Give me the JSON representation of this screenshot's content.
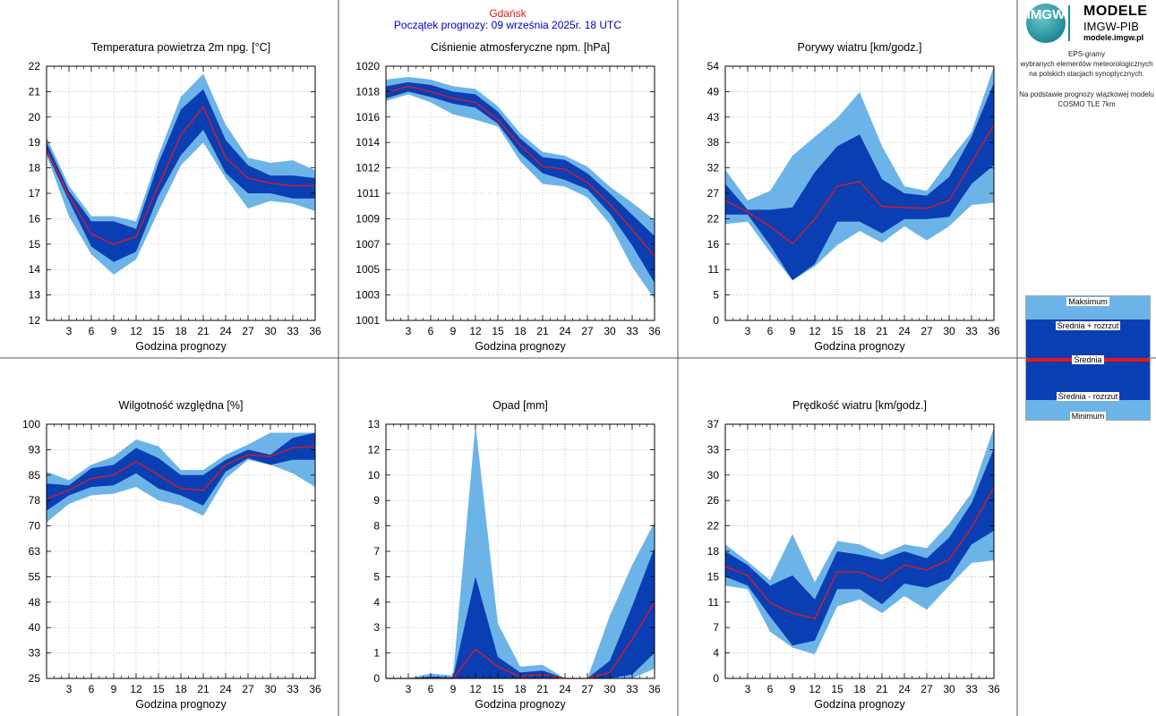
{
  "header": {
    "station": "Gdańsk",
    "forecast_start": "Początek prognozy: 09 września 2025r. 18 UTC"
  },
  "logo": {
    "mark": "IMGW",
    "title": "MODELE",
    "subtitle": "IMGW-PIB",
    "url": "modele.imgw.pl"
  },
  "description": {
    "lines_top": [
      "EPS-gramy",
      "wybranych elementów meteorologicznych",
      "na polskich stacjach  synoptycznych."
    ],
    "lines_bottom": [
      "Na podstawie prognozy wiązkowej modelu",
      "COSMO TLE 7km"
    ]
  },
  "legend": {
    "labels": [
      "Maksimum",
      "Średnia + rozrzut",
      "Średnia",
      "Średnia - rozrzut",
      "Minimum"
    ]
  },
  "colors": {
    "outer_band": "#6cb4e8",
    "inner_band": "#0a3fb4",
    "mean_line": "#e8161b",
    "header_station": "#e8161b",
    "header_start": "#0000c8"
  },
  "chart_data": [
    {
      "type": "area",
      "title": "Temperatura powietrza 2m npg. [°C]",
      "xlabel": "Godzina prognozy",
      "x": [
        0,
        3,
        6,
        9,
        12,
        15,
        18,
        21,
        24,
        27,
        30,
        33,
        36
      ],
      "xticks": [
        3,
        6,
        9,
        12,
        15,
        18,
        21,
        24,
        27,
        30,
        33,
        36
      ],
      "ylim": [
        12,
        22
      ],
      "yticks": [
        "12",
        "13",
        "14",
        "15",
        "16",
        "17",
        "18",
        "19",
        "20",
        "21",
        "22"
      ],
      "series": {
        "max": [
          19.2,
          17.3,
          16.1,
          16.1,
          15.9,
          18.5,
          20.8,
          21.7,
          19.7,
          18.4,
          18.2,
          18.3,
          17.9
        ],
        "mean_plus": [
          19.0,
          17.1,
          15.9,
          15.9,
          15.6,
          18.2,
          20.3,
          21.1,
          19.1,
          18.1,
          17.7,
          17.7,
          17.6
        ],
        "mean": [
          18.7,
          16.9,
          15.4,
          15.0,
          15.3,
          17.3,
          19.3,
          20.4,
          18.4,
          17.6,
          17.4,
          17.3,
          17.3
        ],
        "mean_minus": [
          18.6,
          16.7,
          14.9,
          14.3,
          14.7,
          16.9,
          18.5,
          19.5,
          17.8,
          17.0,
          17.0,
          16.8,
          16.8
        ],
        "min": [
          18.5,
          16.1,
          14.6,
          13.8,
          14.4,
          16.3,
          18.1,
          19.0,
          17.6,
          16.4,
          16.7,
          16.6,
          16.3
        ]
      }
    },
    {
      "type": "area",
      "title": "Ciśnienie atmosferyczne npm. [hPa]",
      "xlabel": "Godzina prognozy",
      "x": [
        0,
        3,
        6,
        9,
        12,
        15,
        18,
        21,
        24,
        27,
        30,
        33,
        36
      ],
      "xticks": [
        3,
        6,
        9,
        12,
        15,
        18,
        21,
        24,
        27,
        30,
        33,
        36
      ],
      "ylim": [
        1001,
        1020
      ],
      "yticks": [
        "1001",
        "1003",
        "1005",
        "1007",
        "1009",
        "1011",
        "1012",
        "1014",
        "1016",
        "1018",
        "1020"
      ],
      "series": {
        "max": [
          1019.0,
          1019.2,
          1019.0,
          1018.5,
          1018.3,
          1017.0,
          1015.0,
          1013.6,
          1013.3,
          1012.5,
          1011.0,
          1009.8,
          1008.5
        ],
        "mean_plus": [
          1018.5,
          1018.8,
          1018.6,
          1018.1,
          1017.9,
          1016.6,
          1014.6,
          1013.2,
          1013.0,
          1012.0,
          1010.5,
          1008.9,
          1007.3
        ],
        "mean": [
          1018.0,
          1018.5,
          1018.1,
          1017.6,
          1017.3,
          1016.0,
          1014.1,
          1012.5,
          1012.3,
          1011.3,
          1009.7,
          1007.8,
          1005.8
        ],
        "mean_minus": [
          1017.6,
          1018.1,
          1017.7,
          1017.2,
          1016.9,
          1015.7,
          1013.5,
          1012.0,
          1011.5,
          1010.8,
          1009.0,
          1006.6,
          1003.8
        ],
        "min": [
          1017.4,
          1017.9,
          1017.3,
          1016.4,
          1016.0,
          1015.5,
          1012.9,
          1011.2,
          1011.0,
          1010.2,
          1008.2,
          1005.0,
          1002.6
        ]
      }
    },
    {
      "type": "area",
      "title": "Porywy wiatru [km/godz.]",
      "xlabel": "Godzina prognozy",
      "x": [
        0,
        3,
        6,
        9,
        12,
        15,
        18,
        21,
        24,
        27,
        30,
        33,
        36
      ],
      "xticks": [
        3,
        6,
        9,
        12,
        15,
        18,
        21,
        24,
        27,
        30,
        33,
        36
      ],
      "ylim": [
        0,
        54
      ],
      "yticks": [
        "0",
        "5",
        "11",
        "16",
        "22",
        "27",
        "32",
        "38",
        "43",
        "49",
        "54"
      ],
      "series": {
        "max": [
          32.0,
          25.5,
          27.5,
          35.0,
          39.0,
          43.0,
          48.5,
          37.0,
          28.5,
          27.5,
          34.0,
          40.0,
          54.0
        ],
        "mean_plus": [
          29.0,
          23.5,
          23.5,
          24.0,
          31.5,
          37.0,
          39.5,
          30.0,
          27.0,
          26.5,
          30.5,
          39.0,
          50.5
        ],
        "mean": [
          25.5,
          23.0,
          20.0,
          16.3,
          21.5,
          28.5,
          29.5,
          24.2,
          24.0,
          23.8,
          25.5,
          33.5,
          41.5
        ],
        "mean_minus": [
          22.5,
          22.5,
          16.0,
          8.5,
          12.0,
          21.0,
          21.0,
          18.5,
          21.5,
          21.5,
          22.0,
          29.0,
          33.0
        ],
        "min": [
          20.5,
          21.0,
          14.5,
          8.5,
          11.5,
          16.0,
          19.0,
          16.5,
          20.0,
          17.0,
          20.0,
          24.5,
          25.0
        ]
      }
    },
    {
      "type": "area",
      "title": "Wilgotność względna [%]",
      "xlabel": "Godzina prognozy",
      "x": [
        0,
        3,
        6,
        9,
        12,
        15,
        18,
        21,
        24,
        27,
        30,
        33,
        36
      ],
      "xticks": [
        3,
        6,
        9,
        12,
        15,
        18,
        21,
        24,
        27,
        30,
        33,
        36
      ],
      "ylim": [
        25,
        100
      ],
      "yticks": [
        "25",
        "33",
        "40",
        "48",
        "55",
        "63",
        "70",
        "78",
        "85",
        "93",
        "100"
      ],
      "series": {
        "max": [
          86.0,
          83.5,
          88.0,
          90.5,
          95.5,
          93.5,
          86.5,
          86.5,
          91.0,
          94.0,
          97.5,
          97.5,
          97.5
        ],
        "mean_plus": [
          82.5,
          82.0,
          87.0,
          88.0,
          93.0,
          90.0,
          85.0,
          85.0,
          89.5,
          92.5,
          91.0,
          96.0,
          97.5
        ],
        "mean": [
          78.0,
          80.5,
          84.0,
          85.0,
          89.0,
          85.0,
          81.0,
          80.5,
          88.0,
          91.0,
          90.5,
          93.0,
          93.5
        ],
        "mean_minus": [
          74.5,
          79.0,
          81.5,
          82.0,
          85.5,
          81.0,
          79.0,
          76.0,
          86.0,
          90.0,
          88.0,
          89.5,
          89.5
        ],
        "min": [
          71.0,
          76.5,
          79.0,
          79.5,
          81.5,
          77.5,
          76.0,
          73.0,
          84.0,
          89.5,
          88.0,
          85.5,
          81.5
        ]
      }
    },
    {
      "type": "area",
      "title": "Opad [mm]",
      "xlabel": "Godzina prognozy",
      "x": [
        0,
        3,
        6,
        9,
        12,
        15,
        18,
        21,
        24,
        27,
        30,
        33,
        36
      ],
      "xticks": [
        3,
        6,
        9,
        12,
        15,
        18,
        21,
        24,
        27,
        30,
        33,
        36
      ],
      "ylim": [
        0,
        13
      ],
      "yticks": [
        "0",
        "1",
        "3",
        "4",
        "5",
        "7",
        "8",
        "9",
        "10",
        "12",
        "13"
      ],
      "series": {
        "max": [
          0.0,
          0.0,
          0.25,
          0.15,
          13.0,
          2.8,
          0.6,
          0.7,
          0.0,
          0.0,
          3.2,
          5.8,
          8.0
        ],
        "mean_plus": [
          0.0,
          0.0,
          0.1,
          0.05,
          5.2,
          1.1,
          0.3,
          0.4,
          0.0,
          0.0,
          0.9,
          3.7,
          6.7
        ],
        "mean": [
          0.0,
          0.0,
          0.0,
          0.0,
          1.5,
          0.6,
          0.1,
          0.2,
          0.0,
          0.0,
          0.3,
          2.0,
          3.9
        ],
        "mean_minus": [
          0.0,
          0.0,
          0.0,
          0.0,
          0.0,
          0.0,
          0.0,
          0.0,
          0.0,
          0.0,
          0.0,
          0.2,
          1.3
        ],
        "min": [
          0.0,
          0.0,
          0.0,
          0.0,
          0.0,
          0.0,
          0.0,
          0.0,
          0.0,
          0.0,
          0.0,
          0.0,
          0.5
        ]
      }
    },
    {
      "type": "area",
      "title": "Prędkość wiatru [km/godz.]",
      "xlabel": "Godzina prognozy",
      "x": [
        0,
        3,
        6,
        9,
        12,
        15,
        18,
        21,
        24,
        27,
        30,
        33,
        36
      ],
      "xticks": [
        3,
        6,
        9,
        12,
        15,
        18,
        21,
        24,
        27,
        30,
        33,
        36
      ],
      "ylim": [
        0,
        37
      ],
      "yticks": [
        "0",
        "4",
        "7",
        "11",
        "15",
        "18",
        "22",
        "26",
        "30",
        "33",
        "37"
      ],
      "series": {
        "max": [
          19.5,
          17.0,
          14.3,
          21.0,
          14.0,
          20.0,
          19.5,
          18.0,
          19.5,
          19.0,
          22.5,
          27.0,
          36.5
        ],
        "mean_plus": [
          18.5,
          16.5,
          13.5,
          15.0,
          11.5,
          18.5,
          18.0,
          17.3,
          18.5,
          17.5,
          20.5,
          25.5,
          33.5
        ],
        "mean": [
          16.3,
          15.0,
          11.0,
          9.5,
          8.7,
          15.5,
          15.5,
          14.2,
          16.5,
          15.8,
          17.3,
          22.0,
          27.8
        ],
        "mean_minus": [
          14.8,
          13.5,
          9.0,
          4.8,
          5.5,
          13.0,
          13.0,
          10.8,
          13.8,
          13.2,
          14.5,
          19.5,
          21.5
        ],
        "min": [
          13.5,
          13.0,
          6.8,
          4.5,
          3.5,
          10.5,
          11.5,
          9.5,
          12.0,
          10.0,
          13.5,
          16.8,
          17.2
        ]
      }
    }
  ]
}
